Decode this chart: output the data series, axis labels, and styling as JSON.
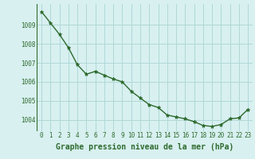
{
  "x": [
    0,
    1,
    2,
    3,
    4,
    5,
    6,
    7,
    8,
    9,
    10,
    11,
    12,
    13,
    14,
    15,
    16,
    17,
    18,
    19,
    20,
    21,
    22,
    23
  ],
  "y": [
    1009.7,
    1009.1,
    1008.5,
    1007.8,
    1006.9,
    1006.4,
    1006.55,
    1006.35,
    1006.15,
    1006.0,
    1005.5,
    1005.15,
    1004.8,
    1004.65,
    1004.25,
    1004.15,
    1004.05,
    1003.9,
    1003.7,
    1003.65,
    1003.75,
    1004.05,
    1004.1,
    1004.55
  ],
  "line_color": "#2d6a2d",
  "marker": "*",
  "bg_color": "#d8f0f0",
  "grid_color": "#b0d8d8",
  "xlabel": "Graphe pression niveau de la mer (hPa)",
  "xlabel_color": "#2d6a2d",
  "xlabel_fontsize": 7.0,
  "tick_color": "#2d6a2d",
  "tick_fontsize": 5.5,
  "ylim": [
    1003.4,
    1010.1
  ],
  "yticks": [
    1004,
    1005,
    1006,
    1007,
    1008,
    1009
  ],
  "xticks": [
    0,
    1,
    2,
    3,
    4,
    5,
    6,
    7,
    8,
    9,
    10,
    11,
    12,
    13,
    14,
    15,
    16,
    17,
    18,
    19,
    20,
    21,
    22,
    23
  ],
  "linewidth": 1.0,
  "markersize": 3.5
}
